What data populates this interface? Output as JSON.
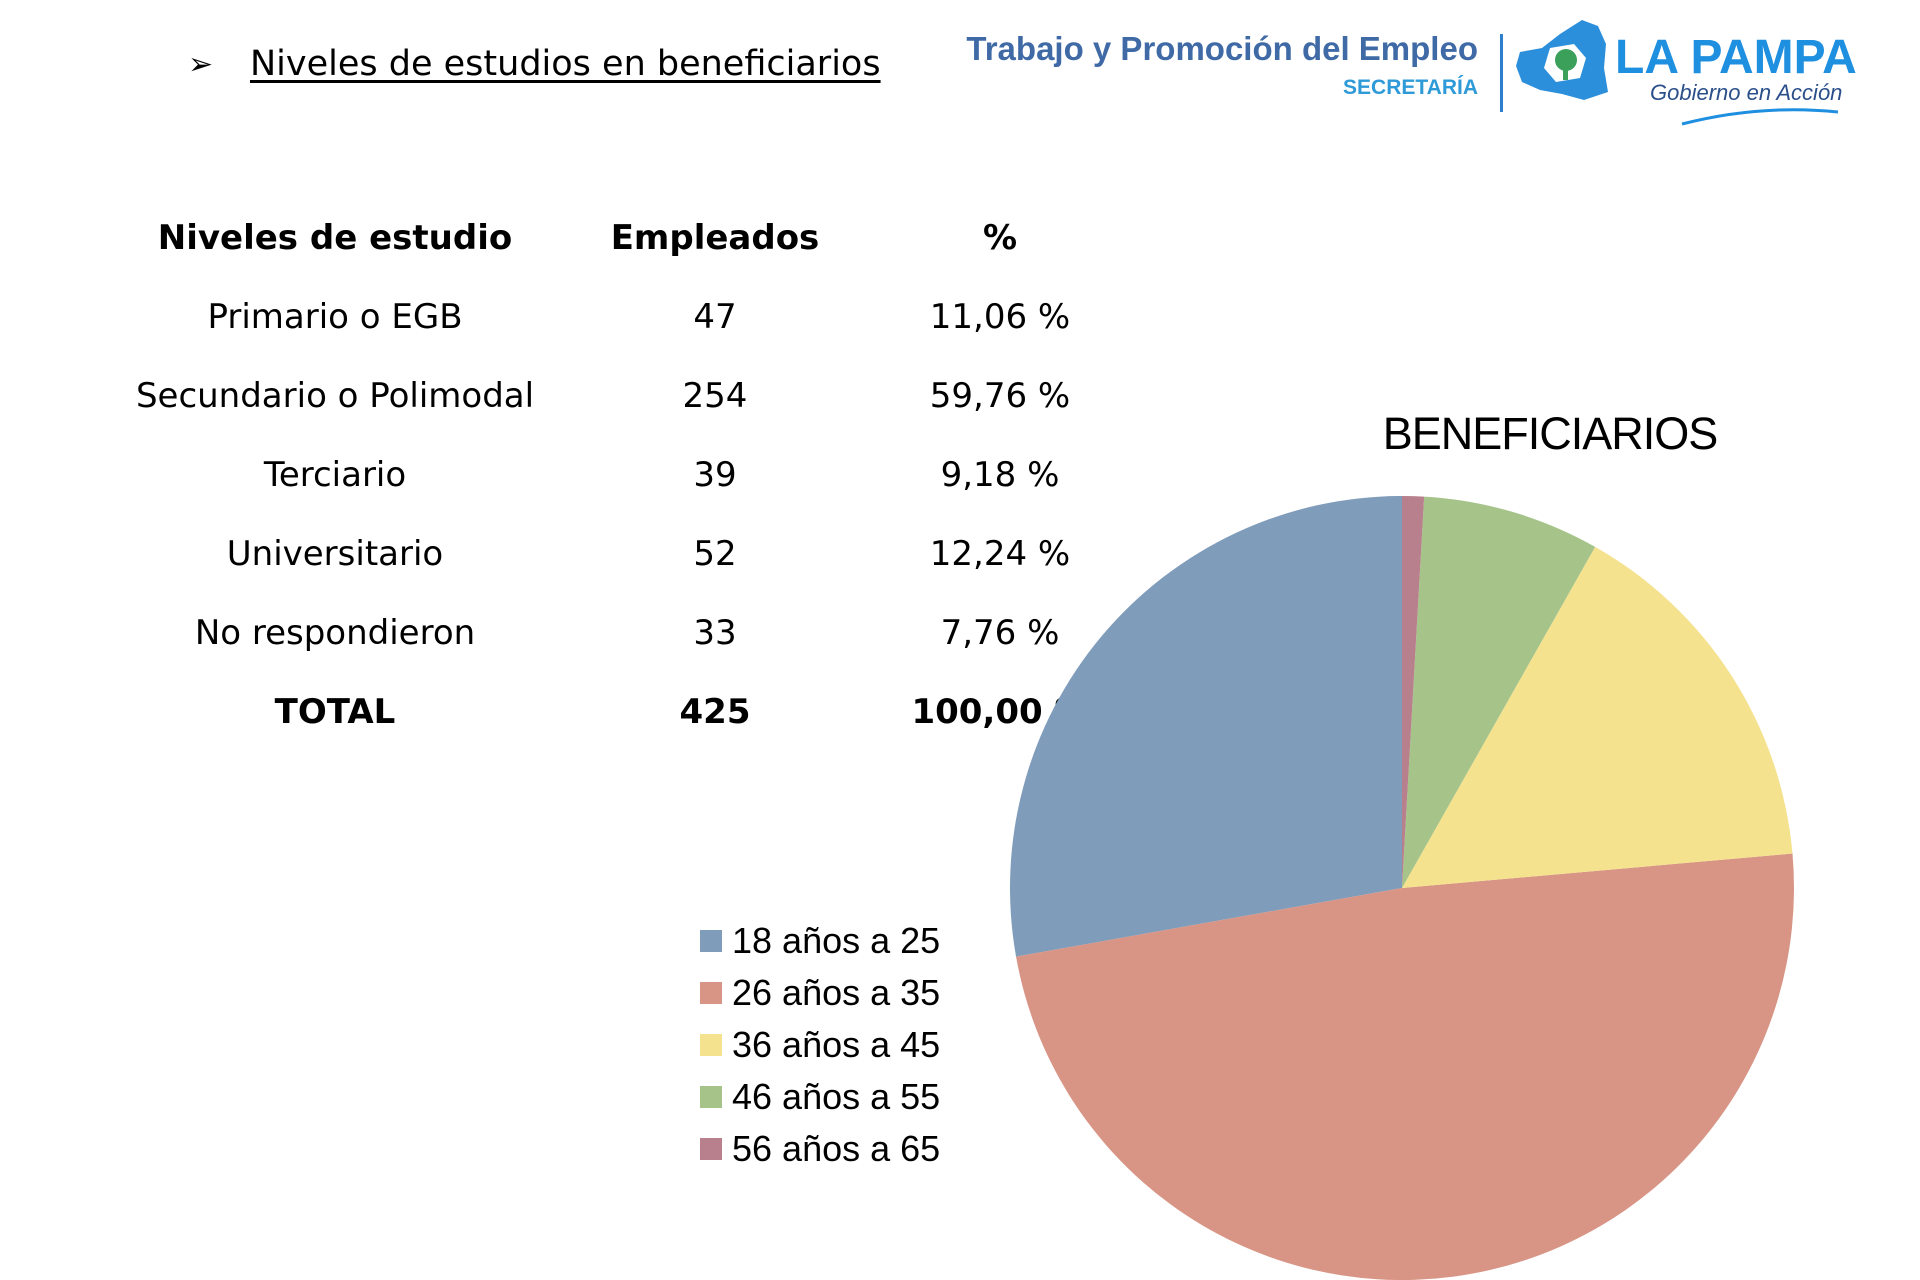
{
  "heading": {
    "bullet": "➢",
    "text": "Niveles de estudios en beneficiarios"
  },
  "logo": {
    "line1": "Trabajo y Promoción del Empleo",
    "line2": "SECRETARÍA",
    "brand": "LA PAMPA",
    "tagline": "Gobierno en Acción"
  },
  "table": {
    "headers": [
      "Niveles de estudio",
      "Empleados",
      "%"
    ],
    "rows": [
      [
        "Primario o EGB",
        "47",
        "11,06 %"
      ],
      [
        "Secundario o Polimodal",
        "254",
        "59,76 %"
      ],
      [
        "Terciario",
        "39",
        "9,18 %"
      ],
      [
        "Universitario",
        "52",
        "12,24 %"
      ],
      [
        "No respondieron",
        "33",
        "7,76 %"
      ]
    ],
    "total": [
      "TOTAL",
      "425",
      "100,00 %"
    ]
  },
  "chart_data": {
    "type": "pie",
    "title": "BENEFICIARIOS",
    "categories": [
      "18 años a 25",
      "26 años a 35",
      "36 años a 45",
      "46 años a 55",
      "56 años a 65"
    ],
    "values": [
      27.8,
      48.6,
      15.4,
      7.3,
      0.9
    ],
    "colors": [
      "#7f9cba",
      "#d89585",
      "#f5e28f",
      "#a6c48a",
      "#b8808d"
    ],
    "start_angle_deg": 0,
    "direction": "counterclockwise",
    "legend_position": "left"
  }
}
